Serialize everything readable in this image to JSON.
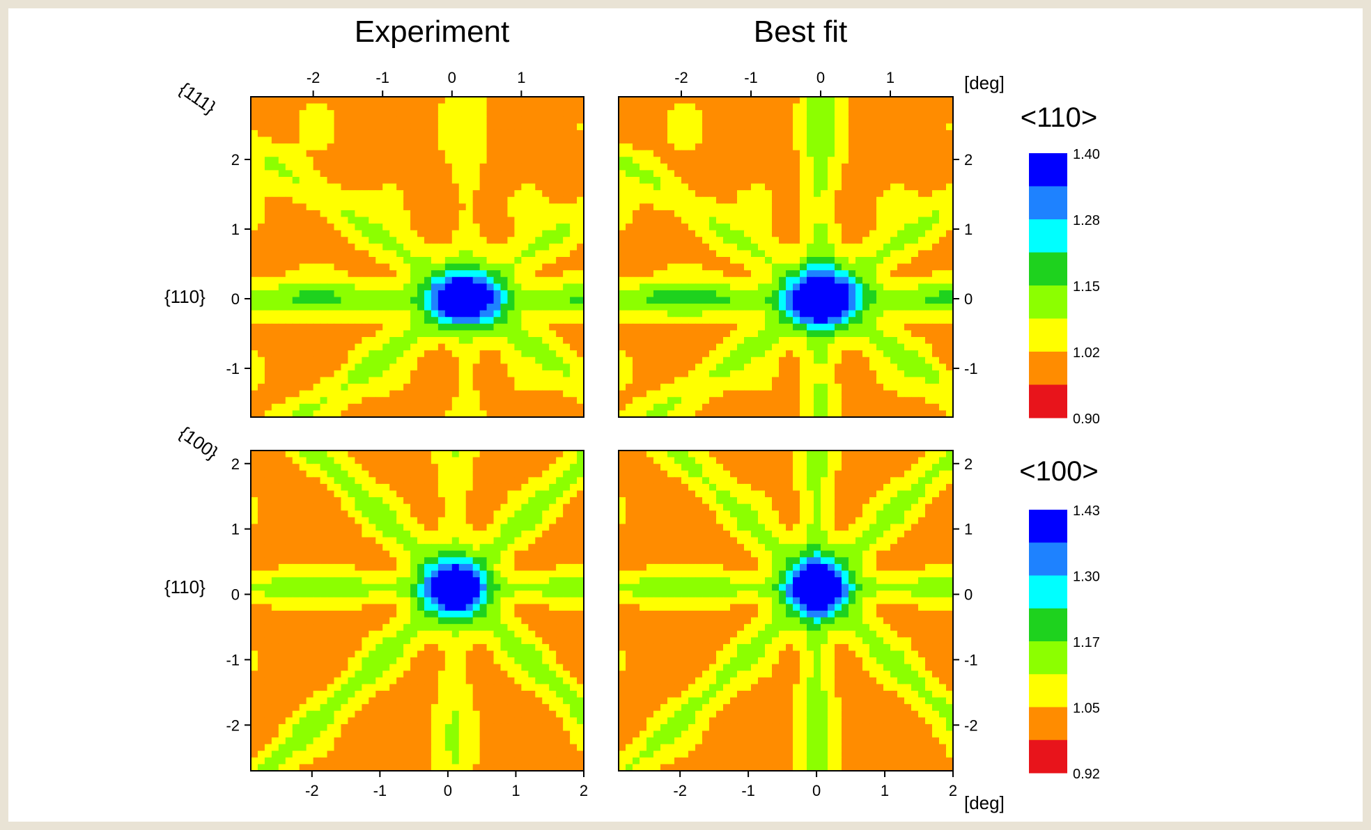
{
  "figure": {
    "col_titles": [
      "Experiment",
      "Best fit"
    ],
    "unit_label_top": "[deg]",
    "unit_label_bottom": "[deg]",
    "row_labels": {
      "top_diag": "{111}",
      "top_h": "{110}",
      "bottom_diag": "{100}",
      "bottom_h": "{110}"
    }
  },
  "colors": {
    "levels_110": [
      "#e8141b",
      "#ff8c00",
      "#ffff00",
      "#8cff00",
      "#1ed21e",
      "#00ffff",
      "#1e82ff",
      "#0000ff"
    ],
    "levels_100": [
      "#e8141b",
      "#ff8c00",
      "#ffff00",
      "#8cff00",
      "#1ed21e",
      "#00ffff",
      "#1e82ff",
      "#0000ff"
    ]
  },
  "chart_data": [
    {
      "type": "heatmap",
      "title": "Experiment",
      "row_title": "<110>",
      "axis": "<110>",
      "xlim": [
        -2.9,
        1.9
      ],
      "ylim": [
        -1.7,
        2.9
      ],
      "xticks": [
        "-2",
        "-1",
        "0",
        "1"
      ],
      "yticks": [
        "2",
        "1",
        "0",
        "-1"
      ],
      "ytick_values": [
        2,
        1,
        0,
        -1
      ],
      "xtick_values": [
        -2,
        -1,
        0,
        1
      ],
      "center": [
        0.2,
        0.0
      ],
      "peak": 1.4,
      "streaks": [
        {
          "angle_deg": 0,
          "strength": 0.18
        },
        {
          "angle_deg": 35,
          "strength": 0.12
        },
        {
          "angle_deg": 145,
          "strength": 0.12
        },
        {
          "angle_deg": 90,
          "strength": 0.06
        }
      ]
    },
    {
      "type": "heatmap",
      "title": "Best fit",
      "row_title": "<110>",
      "axis": "<110>",
      "xlim": [
        -2.9,
        1.9
      ],
      "ylim": [
        -1.7,
        2.9
      ],
      "xticks": [
        "-2",
        "-1",
        "0",
        "1"
      ],
      "yticks": [
        "2",
        "1",
        "0",
        "-1"
      ],
      "ytick_values": [
        2,
        1,
        0,
        -1
      ],
      "xtick_values": [
        -2,
        -1,
        0,
        1
      ],
      "center": [
        0.0,
        0.0
      ],
      "peak": 1.4,
      "streaks": [
        {
          "angle_deg": 0,
          "strength": 0.2
        },
        {
          "angle_deg": 90,
          "strength": 0.14
        },
        {
          "angle_deg": 35,
          "strength": 0.12
        },
        {
          "angle_deg": 145,
          "strength": 0.12
        }
      ]
    },
    {
      "type": "heatmap",
      "title": "Experiment",
      "row_title": "<100>",
      "axis": "<100>",
      "xlim": [
        -2.9,
        2.0
      ],
      "ylim": [
        -2.7,
        2.2
      ],
      "xticks": [
        "-2",
        "-1",
        "0",
        "1",
        "2"
      ],
      "yticks": [
        "2",
        "1",
        "0",
        "-1",
        "-2"
      ],
      "ytick_values": [
        2,
        1,
        0,
        -1,
        -2
      ],
      "xtick_values": [
        -2,
        -1,
        0,
        1,
        2
      ],
      "center": [
        0.1,
        0.1
      ],
      "peak": 1.43,
      "streaks": [
        {
          "angle_deg": 0,
          "strength": 0.16
        },
        {
          "angle_deg": 45,
          "strength": 0.14
        },
        {
          "angle_deg": 135,
          "strength": 0.14
        },
        {
          "angle_deg": 90,
          "strength": 0.1
        }
      ]
    },
    {
      "type": "heatmap",
      "title": "Best fit",
      "row_title": "<100>",
      "axis": "<100>",
      "xlim": [
        -2.9,
        2.0
      ],
      "ylim": [
        -2.7,
        2.2
      ],
      "xticks": [
        "-2",
        "-1",
        "0",
        "1",
        "2"
      ],
      "yticks": [
        "2",
        "1",
        "0",
        "-1",
        "-2"
      ],
      "ytick_values": [
        2,
        1,
        0,
        -1,
        -2
      ],
      "xtick_values": [
        -2,
        -1,
        0,
        1,
        2
      ],
      "center": [
        0.0,
        0.1
      ],
      "peak": 1.43,
      "streaks": [
        {
          "angle_deg": 0,
          "strength": 0.16
        },
        {
          "angle_deg": 90,
          "strength": 0.16
        },
        {
          "angle_deg": 45,
          "strength": 0.13
        },
        {
          "angle_deg": 135,
          "strength": 0.13
        }
      ]
    }
  ],
  "colorbars": [
    {
      "title": "<110>",
      "labels": [
        "1.40",
        "1.28",
        "1.15",
        "1.02",
        "0.90"
      ]
    },
    {
      "title": "<100>",
      "labels": [
        "1.43",
        "1.30",
        "1.17",
        "1.05",
        "0.92"
      ]
    }
  ]
}
